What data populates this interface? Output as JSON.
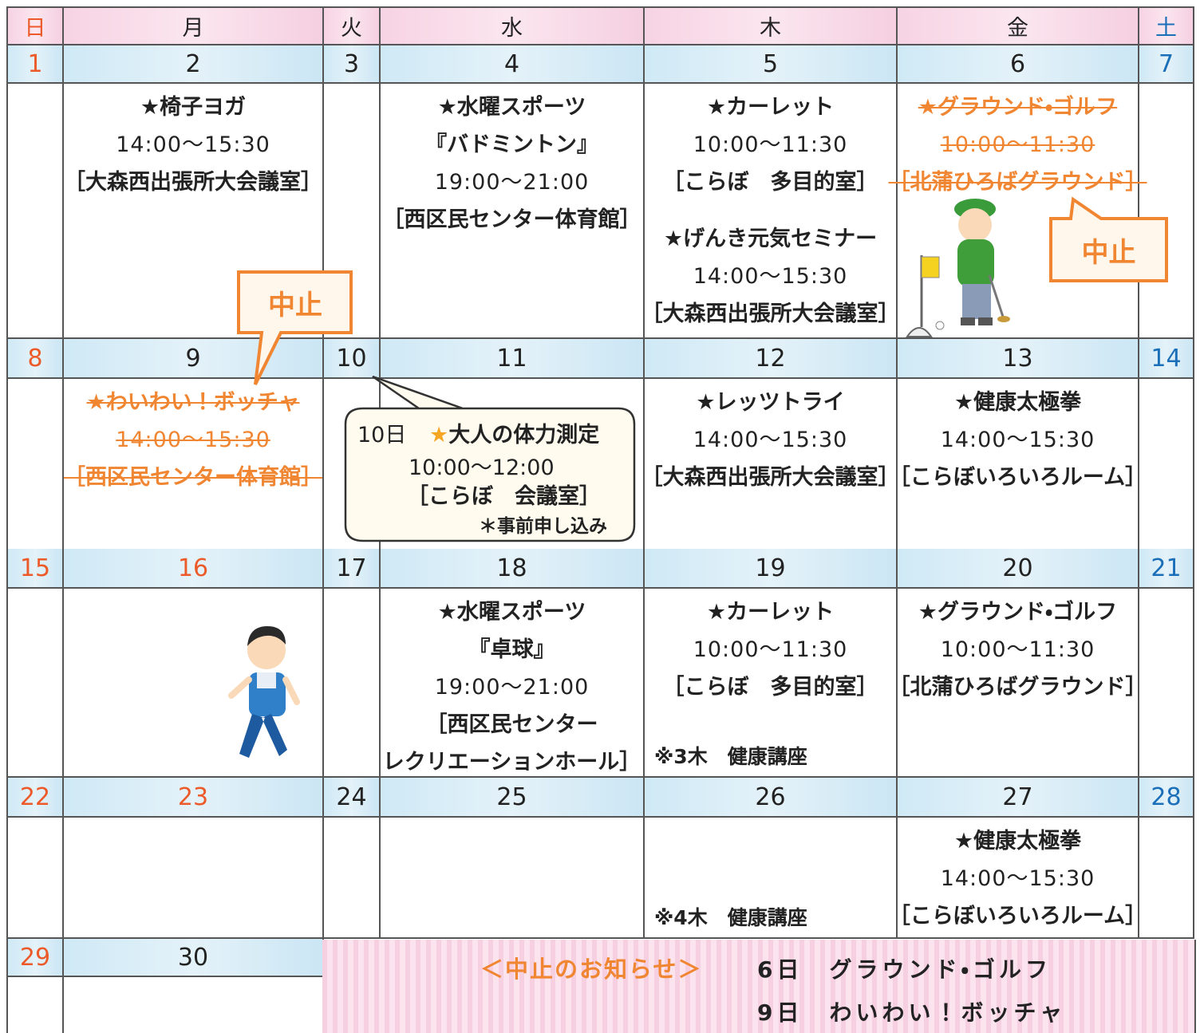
{
  "weekdays": [
    "日",
    "月",
    "火",
    "水",
    "木",
    "金",
    "土"
  ],
  "weeks": [
    {
      "dates": [
        "1",
        "2",
        "3",
        "4",
        "5",
        "6",
        "7"
      ],
      "cells": [
        {},
        {
          "events": [
            {
              "lines": [
                "★椅子ヨガ",
                "14:00～15:30",
                "［大森西出張所大会議室］"
              ]
            }
          ]
        },
        {},
        {
          "events": [
            {
              "lines": [
                "★水曜スポーツ",
                "『バドミントン』",
                "19:00～21:00",
                "［西区民センター体育館］"
              ]
            }
          ]
        },
        {
          "events": [
            {
              "lines": [
                "★カーレット",
                "10:00～11:30",
                "［こらぼ　多目的室］"
              ]
            },
            {
              "lines": [
                "★げんき元気セミナー",
                "14:00～15:30",
                "［大森西出張所大会議室］"
              ]
            }
          ]
        },
        {
          "events": [
            {
              "lines": [
                "★グラウンド・ゴルフ",
                "10:00～11:30",
                "［北蒲ひろばグラウンド］"
              ],
              "cancelled": true
            }
          ]
        },
        {}
      ]
    },
    {
      "dates": [
        "8",
        "9",
        "10",
        "11",
        "12",
        "13",
        "14"
      ],
      "cells": [
        {},
        {
          "events": [
            {
              "lines": [
                "★わいわい！ボッチャ",
                "14:00～15:30",
                "［西区民センター体育館］"
              ],
              "cancelled": true
            }
          ]
        },
        {},
        {},
        {
          "events": [
            {
              "lines": [
                "★レッツトライ",
                "14:00～15:30",
                "［大森西出張所大会議室］"
              ]
            }
          ]
        },
        {
          "events": [
            {
              "lines": [
                "★健康太極拳",
                "14:00～15:30",
                "［こらぼいろいろルーム］"
              ]
            }
          ]
        },
        {}
      ]
    },
    {
      "dates": [
        "15",
        "16",
        "17",
        "18",
        "19",
        "20",
        "21"
      ],
      "holiday_columns": [
        1
      ],
      "cells": [
        {},
        {},
        {},
        {
          "events": [
            {
              "lines": [
                "★水曜スポーツ",
                "『卓球』",
                "19:00～21:00",
                "［西区民センター",
                "レクリエーションホール］"
              ]
            }
          ]
        },
        {
          "events": [
            {
              "lines": [
                "★カーレット",
                "10:00～11:30",
                "［こらぼ　多目的室］"
              ]
            }
          ],
          "note": "※3木　健康講座"
        },
        {
          "events": [
            {
              "lines": [
                "★グラウンド・ゴルフ",
                "10:00～11:30",
                "［北蒲ひろばグラウンド］"
              ]
            }
          ]
        },
        {}
      ]
    },
    {
      "dates": [
        "22",
        "23",
        "24",
        "25",
        "26",
        "27",
        "28"
      ],
      "holiday_columns": [
        1
      ],
      "cells": [
        {},
        {},
        {},
        {},
        {
          "note": "※4木　健康講座"
        },
        {
          "events": [
            {
              "lines": [
                "★健康太極拳",
                "14:00～15:30",
                "［こらぼいろいろルーム］"
              ]
            }
          ]
        },
        {}
      ]
    },
    {
      "dates": [
        "29",
        "30"
      ],
      "cells": [
        {},
        {}
      ]
    }
  ],
  "cancel_labels": [
    "中止",
    "中止"
  ],
  "bubble": {
    "day": "10日",
    "title": "★大人の体力測定",
    "time": "10:00～12:00",
    "place": "［こらぼ　会議室］",
    "note": "＊事前申し込み"
  },
  "notice": {
    "title": "＜中止のお知らせ＞",
    "items": [
      "6日　グラウンド・ゴルフ",
      "9日　わいわい！ボッチャ"
    ]
  }
}
